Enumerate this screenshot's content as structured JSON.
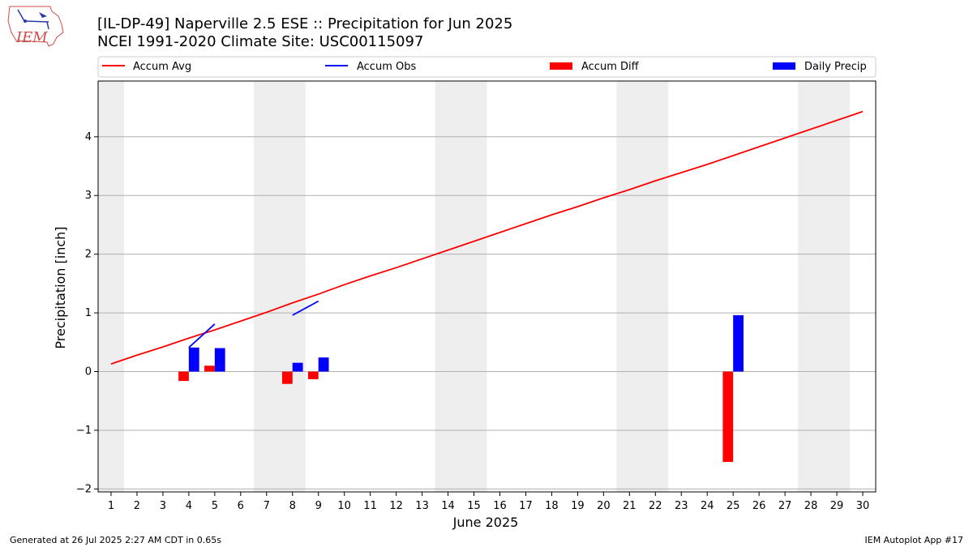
{
  "header": {
    "title_line1": "[IL-DP-49] Naperville 2.5 ESE :: Precipitation for Jun 2025",
    "title_line2": "NCEI 1991-2020 Climate Site: USC00115097",
    "logo_text": "IEM"
  },
  "footer": {
    "generated": "Generated at 26 Jul 2025 2:27 AM CDT in 0.65s",
    "app": "IEM Autoplot App #17"
  },
  "colors": {
    "accum_avg": "#ff0000",
    "accum_obs": "#0000ff",
    "accum_diff": "#ff0000",
    "daily_precip": "#0000ff",
    "weekend_shade": "#eeeeee",
    "grid": "#b0b0b0"
  },
  "chart_data": {
    "type": "bar",
    "xlabel": "June 2025",
    "ylabel": "Precipitation [inch]",
    "xlim": [
      0.5,
      30.5
    ],
    "ylim": [
      -2.05,
      4.95
    ],
    "yticks": [
      -2,
      -1,
      0,
      1,
      2,
      3,
      4
    ],
    "ytick_labels": [
      "−2",
      "−1",
      "0",
      "1",
      "2",
      "3",
      "4"
    ],
    "xticks": [
      1,
      2,
      3,
      4,
      5,
      6,
      7,
      8,
      9,
      10,
      11,
      12,
      13,
      14,
      15,
      16,
      17,
      18,
      19,
      20,
      21,
      22,
      23,
      24,
      25,
      26,
      27,
      28,
      29,
      30
    ],
    "grid": "horizontal",
    "legend": {
      "placement": "top",
      "entries": [
        "Accum Avg",
        "Accum Obs",
        "Accum Diff",
        "Daily Precip"
      ]
    },
    "weekend_spans": [
      [
        0.5,
        1.5
      ],
      [
        6.5,
        8.5
      ],
      [
        13.5,
        15.5
      ],
      [
        20.5,
        22.5
      ],
      [
        27.5,
        29.5
      ]
    ],
    "series": [
      {
        "name": "Accum Avg",
        "kind": "line",
        "x": [
          1,
          2,
          3,
          4,
          5,
          6,
          7,
          8,
          9,
          10,
          11,
          12,
          13,
          14,
          15,
          16,
          17,
          18,
          19,
          20,
          21,
          22,
          23,
          24,
          25,
          26,
          27,
          28,
          29,
          30
        ],
        "values": [
          0.13,
          0.28,
          0.42,
          0.57,
          0.71,
          0.86,
          1.01,
          1.17,
          1.32,
          1.48,
          1.63,
          1.77,
          1.92,
          2.07,
          2.22,
          2.37,
          2.52,
          2.67,
          2.81,
          2.96,
          3.1,
          3.25,
          3.39,
          3.53,
          3.68,
          3.83,
          3.98,
          4.13,
          4.28,
          4.43
        ]
      },
      {
        "name": "Accum Obs",
        "kind": "line",
        "segments": [
          {
            "x": [
              4,
              5
            ],
            "values": [
              0.41,
              0.81
            ]
          },
          {
            "x": [
              8,
              9
            ],
            "values": [
              0.96,
              1.2
            ]
          }
        ]
      },
      {
        "name": "Accum Diff",
        "kind": "bar",
        "x": [
          4,
          5,
          8,
          9,
          25
        ],
        "values": [
          -0.16,
          0.1,
          -0.21,
          -0.13,
          -1.54
        ]
      },
      {
        "name": "Daily Precip",
        "kind": "bar",
        "x": [
          4,
          5,
          8,
          9,
          25
        ],
        "values": [
          0.41,
          0.4,
          0.15,
          0.24,
          0.96
        ]
      }
    ]
  }
}
